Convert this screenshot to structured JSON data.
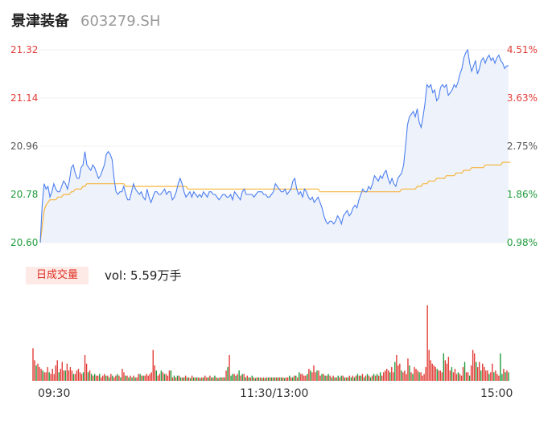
{
  "header": {
    "name": "景津装备",
    "code": "603279.SH"
  },
  "volume_panel": {
    "tab_label": "日成交量",
    "vol_prefix": "vol: ",
    "vol_value": "5.59万手"
  },
  "colors": {
    "price": "#4c7ff0",
    "avg": "#f5b53c",
    "up": "#e23c36",
    "down": "#1f9b3c",
    "area": "#eef2fb"
  },
  "chart_data": [
    {
      "type": "line",
      "y_left_ticks": [
        "21.32",
        "21.14",
        "20.96",
        "20.78",
        "20.60"
      ],
      "y_right_ticks": [
        "4.51%",
        "3.63%",
        "2.75%",
        "1.86%",
        "0.98%"
      ],
      "x_ticks": [
        "09:30",
        "11:30/13:00",
        "15:00"
      ],
      "ylim": [
        20.6,
        21.32
      ],
      "series": [
        {
          "values": [
            20.6,
            20.74,
            20.82,
            20.8,
            20.81,
            20.77,
            20.79,
            20.82,
            20.8,
            20.79,
            20.79,
            20.81,
            20.83,
            20.82,
            20.8,
            20.83,
            20.88,
            20.89,
            20.86,
            20.84,
            20.84,
            20.88,
            20.89,
            20.94,
            20.89,
            20.88,
            20.87,
            20.89,
            20.88,
            20.86,
            20.84,
            20.85,
            20.87,
            20.89,
            20.93,
            20.94,
            20.93,
            20.91,
            20.84,
            20.79,
            20.78,
            20.79,
            20.79,
            20.81,
            20.78,
            20.76,
            20.76,
            20.79,
            20.82,
            20.8,
            20.79,
            20.78,
            20.79,
            20.77,
            20.76,
            20.8,
            20.77,
            20.75,
            20.77,
            20.79,
            20.79,
            20.78,
            20.78,
            20.79,
            20.8,
            20.78,
            20.79,
            20.79,
            20.76,
            20.77,
            20.79,
            20.82,
            20.84,
            20.82,
            20.79,
            20.77,
            20.78,
            20.79,
            20.77,
            20.79,
            20.78,
            20.77,
            20.78,
            20.77,
            20.79,
            20.78,
            20.77,
            20.79,
            20.79,
            20.78,
            20.78,
            20.77,
            20.76,
            20.77,
            20.78,
            20.78,
            20.77,
            20.77,
            20.78,
            20.76,
            20.79,
            20.78,
            20.77,
            20.76,
            20.79,
            20.8,
            20.78,
            20.78,
            20.78,
            20.78,
            20.77,
            20.78,
            20.79,
            20.79,
            20.79,
            20.78,
            20.78,
            20.77,
            20.77,
            20.78,
            20.79,
            20.82,
            20.81,
            20.8,
            20.79,
            20.79,
            20.8,
            20.78,
            20.79,
            20.8,
            20.83,
            20.84,
            20.8,
            20.78,
            20.79,
            20.77,
            20.8,
            20.79,
            20.77,
            20.76,
            20.77,
            20.75,
            20.76,
            20.77,
            20.75,
            20.73,
            20.7,
            20.68,
            20.67,
            20.68,
            20.68,
            20.67,
            20.68,
            20.7,
            20.69,
            20.67,
            20.7,
            20.71,
            20.72,
            20.7,
            20.71,
            20.73,
            20.74,
            20.73,
            20.76,
            20.78,
            20.8,
            20.79,
            20.79,
            20.81,
            20.8,
            20.82,
            20.85,
            20.84,
            20.83,
            20.85,
            20.84,
            20.86,
            20.87,
            20.84,
            20.82,
            20.84,
            20.82,
            20.81,
            20.84,
            20.85,
            20.86,
            20.89,
            20.96,
            21.04,
            21.07,
            21.08,
            21.09,
            21.07,
            21.1,
            21.05,
            21.03,
            21.07,
            21.12,
            21.19,
            21.18,
            21.19,
            21.16,
            21.17,
            21.13,
            21.14,
            21.18,
            21.19,
            21.18,
            21.19,
            21.15,
            21.16,
            21.17,
            21.19,
            21.18,
            21.2,
            21.23,
            21.25,
            21.29,
            21.31,
            21.32,
            21.27,
            21.24,
            21.26,
            21.28,
            21.23,
            21.25,
            21.28,
            21.29,
            21.27,
            21.29,
            21.3,
            21.28,
            21.29,
            21.27,
            21.29,
            21.3,
            21.28,
            21.27,
            21.25,
            21.26,
            21.26
          ]
        },
        {
          "values": [
            20.6,
            20.66,
            20.72,
            20.74,
            20.75,
            20.76,
            20.76,
            20.76,
            20.76,
            20.77,
            20.77,
            20.77,
            20.78,
            20.78,
            20.78,
            20.78,
            20.79,
            20.79,
            20.8,
            20.8,
            20.8,
            20.8,
            20.81,
            20.81,
            20.82,
            20.82,
            20.82,
            20.82,
            20.82,
            20.82,
            20.82,
            20.82,
            20.82,
            20.82,
            20.82,
            20.82,
            20.82,
            20.82,
            20.82,
            20.82,
            20.82,
            20.82,
            20.82,
            20.82,
            20.81,
            20.81,
            20.81,
            20.81,
            20.81,
            20.81,
            20.81,
            20.81,
            20.81,
            20.81,
            20.81,
            20.81,
            20.81,
            20.81,
            20.81,
            20.81,
            20.81,
            20.81,
            20.81,
            20.81,
            20.81,
            20.81,
            20.81,
            20.81,
            20.81,
            20.81,
            20.81,
            20.81,
            20.81,
            20.81,
            20.81,
            20.81,
            20.8,
            20.8,
            20.8,
            20.8,
            20.8,
            20.8,
            20.8,
            20.8,
            20.8,
            20.8,
            20.8,
            20.8,
            20.8,
            20.8,
            20.8,
            20.8,
            20.8,
            20.8,
            20.8,
            20.8,
            20.8,
            20.8,
            20.8,
            20.8,
            20.8,
            20.8,
            20.8,
            20.8,
            20.8,
            20.8,
            20.8,
            20.8,
            20.8,
            20.8,
            20.8,
            20.8,
            20.8,
            20.8,
            20.8,
            20.8,
            20.8,
            20.8,
            20.8,
            20.8,
            20.8,
            20.8,
            20.8,
            20.8,
            20.8,
            20.8,
            20.8,
            20.8,
            20.8,
            20.8,
            20.8,
            20.8,
            20.8,
            20.8,
            20.8,
            20.8,
            20.8,
            20.8,
            20.8,
            20.8,
            20.8,
            20.8,
            20.8,
            20.8,
            20.79,
            20.79,
            20.79,
            20.79,
            20.79,
            20.79,
            20.79,
            20.79,
            20.79,
            20.79,
            20.79,
            20.79,
            20.79,
            20.79,
            20.79,
            20.79,
            20.79,
            20.79,
            20.79,
            20.79,
            20.79,
            20.79,
            20.79,
            20.79,
            20.79,
            20.79,
            20.79,
            20.79,
            20.79,
            20.79,
            20.79,
            20.79,
            20.79,
            20.79,
            20.79,
            20.79,
            20.79,
            20.79,
            20.79,
            20.79,
            20.79,
            20.79,
            20.8,
            20.8,
            20.8,
            20.8,
            20.8,
            20.8,
            20.8,
            20.8,
            20.81,
            20.81,
            20.81,
            20.82,
            20.82,
            20.82,
            20.83,
            20.83,
            20.83,
            20.83,
            20.84,
            20.84,
            20.84,
            20.84,
            20.84,
            20.85,
            20.85,
            20.85,
            20.85,
            20.85,
            20.86,
            20.86,
            20.86,
            20.86,
            20.87,
            20.87,
            20.87,
            20.87,
            20.88,
            20.88,
            20.88,
            20.88,
            20.88,
            20.88,
            20.88,
            20.89,
            20.89,
            20.89,
            20.89,
            20.89,
            20.89,
            20.89,
            20.89,
            20.89,
            20.9,
            20.9,
            20.9,
            20.9,
            20.9
          ]
        }
      ]
    },
    {
      "type": "bar",
      "volumes": [
        9.5,
        6.0,
        4.5,
        5.0,
        4.0,
        3.5,
        3.0,
        2.5,
        2.5,
        4.0,
        2.5,
        2.0,
        3.5,
        2.0,
        4.5,
        6.0,
        2.5,
        3.5,
        5.5,
        3.0,
        3.0,
        5.0,
        3.0,
        4.0,
        3.0,
        2.0,
        2.0,
        3.0,
        3.5,
        2.5,
        2.0,
        2.5,
        7.5,
        5.0,
        2.5,
        3.0,
        2.0,
        1.5,
        2.0,
        1.5,
        1.5,
        2.0,
        1.0,
        1.5,
        2.0,
        1.5,
        1.5,
        1.0,
        2.0,
        1.5,
        1.0,
        1.5,
        2.0,
        1.5,
        1.0,
        3.5,
        2.5,
        1.5,
        1.5,
        1.0,
        1.5,
        1.0,
        1.5,
        1.0,
        1.0,
        2.0,
        2.0,
        1.5,
        1.5,
        1.5,
        2.0,
        1.5,
        2.0,
        2.5,
        9.0,
        4.5,
        3.0,
        1.5,
        2.0,
        3.0,
        2.5,
        2.0,
        2.0,
        1.5,
        3.0,
        3.0,
        1.0,
        1.5,
        1.0,
        1.5,
        1.5,
        1.0,
        1.0,
        1.0,
        1.5,
        1.0,
        1.0,
        0.8,
        1.5,
        1.0,
        1.0,
        1.0,
        1.0,
        0.8,
        1.0,
        1.0,
        1.5,
        1.0,
        1.0,
        1.5,
        1.0,
        1.0,
        1.5,
        1.0,
        0.8,
        1.0,
        1.0,
        1.0,
        1.0,
        3.0,
        4.0,
        7.5,
        1.5,
        2.0,
        2.0,
        1.5,
        2.0,
        3.0,
        1.5,
        2.0,
        2.0,
        1.0,
        1.5,
        1.0,
        1.0,
        1.5,
        1.0,
        0.8,
        1.0,
        1.0,
        1.0,
        0.8,
        1.0,
        0.8,
        1.0,
        1.0,
        1.0,
        1.0,
        1.0,
        1.0,
        1.0,
        1.0,
        1.0,
        1.0,
        1.0,
        0.8,
        1.0,
        1.0,
        1.5,
        1.0,
        1.0,
        1.5,
        1.5,
        1.0,
        2.5,
        2.0,
        2.0,
        1.5,
        1.5,
        2.0,
        3.5,
        3.0,
        2.5,
        4.5,
        2.5,
        3.0,
        3.0,
        1.5,
        2.0,
        2.0,
        1.5,
        1.5,
        2.0,
        1.5,
        1.0,
        1.5,
        1.0,
        1.0,
        1.5,
        1.0,
        1.5,
        1.5,
        1.0,
        1.0,
        1.0,
        1.5,
        1.0,
        1.5,
        1.0,
        1.5,
        2.0,
        1.5,
        1.5,
        2.0,
        1.0,
        1.5,
        2.0,
        1.5,
        1.0,
        1.5,
        2.0,
        1.5,
        2.0,
        1.5,
        2.5,
        1.5,
        2.5,
        3.0,
        3.5,
        3.0,
        2.5,
        4.0,
        2.5,
        5.5,
        7.5,
        4.5,
        5.0,
        3.0,
        2.5,
        3.0,
        2.0,
        6.5,
        4.5,
        2.5,
        2.0,
        4.0,
        3.5,
        3.0,
        2.5,
        2.5,
        1.5,
        2.0,
        4.0,
        22.0,
        9.0,
        6.0,
        5.0,
        4.5,
        4.0,
        3.5,
        3.0,
        3.0,
        2.5,
        8.0,
        6.0,
        5.0,
        7.0,
        3.0,
        4.0,
        2.5,
        3.5,
        2.0,
        2.5,
        2.0,
        1.5,
        4.0,
        5.5,
        2.5,
        2.5,
        1.5,
        4.5,
        9.0,
        8.0,
        5.5,
        4.0,
        5.5,
        3.0,
        5.0,
        4.0,
        3.0,
        3.0,
        2.0,
        2.5,
        5.0,
        2.5,
        3.0,
        2.0,
        1.5,
        8.0,
        2.0,
        3.5,
        2.5,
        3.0,
        2.5
      ],
      "directions": [
        "u",
        "u",
        "d",
        "u",
        "u",
        "u",
        "d",
        "u",
        "u",
        "u",
        "d",
        "u",
        "u",
        "u",
        "u",
        "u",
        "d",
        "u",
        "u",
        "u",
        "d",
        "u",
        "u",
        "u",
        "u",
        "d",
        "u",
        "u",
        "u",
        "u",
        "u",
        "d",
        "u",
        "u",
        "d",
        "u",
        "d",
        "u",
        "d",
        "u",
        "u",
        "d",
        "u",
        "u",
        "u",
        "d",
        "u",
        "d",
        "u",
        "d",
        "u",
        "u",
        "d",
        "u",
        "d",
        "u",
        "u",
        "d",
        "u",
        "d",
        "u",
        "d",
        "u",
        "d",
        "u",
        "u",
        "d",
        "u",
        "d",
        "u",
        "u",
        "u",
        "u",
        "u",
        "u",
        "u",
        "d",
        "u",
        "u",
        "d",
        "u",
        "d",
        "u",
        "u",
        "u",
        "d",
        "u",
        "d",
        "u",
        "d",
        "u",
        "d",
        "u",
        "d",
        "u",
        "d",
        "u",
        "d",
        "u",
        "d",
        "u",
        "d",
        "u",
        "d",
        "u",
        "d",
        "u",
        "u",
        "d",
        "u",
        "d",
        "u",
        "d",
        "u",
        "d",
        "u",
        "d",
        "u",
        "d",
        "u",
        "d",
        "u",
        "d",
        "d",
        "u",
        "d",
        "u",
        "d",
        "u",
        "d",
        "u",
        "d",
        "u",
        "d",
        "u",
        "d",
        "u",
        "d",
        "u",
        "d",
        "u",
        "d",
        "u",
        "d",
        "u",
        "d",
        "u",
        "d",
        "u",
        "d",
        "u",
        "d",
        "u",
        "d",
        "u",
        "d",
        "u",
        "u",
        "d",
        "u",
        "d",
        "u",
        "d",
        "u",
        "d",
        "u",
        "u",
        "u",
        "u",
        "d",
        "u",
        "d",
        "u",
        "u",
        "u",
        "d",
        "u",
        "u",
        "d",
        "u",
        "d",
        "u",
        "d",
        "u",
        "d",
        "u",
        "d",
        "u",
        "d",
        "u",
        "d",
        "u",
        "d",
        "u",
        "d",
        "u",
        "d",
        "u",
        "d",
        "u",
        "d",
        "u",
        "d",
        "u",
        "d",
        "u",
        "d",
        "u",
        "d",
        "u",
        "d",
        "u",
        "d",
        "u",
        "d",
        "u",
        "u",
        "u",
        "u",
        "u",
        "d",
        "u",
        "u",
        "d",
        "u",
        "u",
        "u",
        "d",
        "u",
        "u",
        "u",
        "u",
        "d",
        "u",
        "d",
        "u",
        "u",
        "u",
        "d",
        "u",
        "u",
        "u",
        "u",
        "u",
        "u",
        "u",
        "u",
        "u",
        "u",
        "d",
        "u",
        "u",
        "u",
        "d",
        "u",
        "u",
        "u",
        "u",
        "d",
        "u",
        "u",
        "u",
        "d",
        "u",
        "u",
        "u",
        "d",
        "u",
        "u",
        "d",
        "u",
        "u",
        "u",
        "d",
        "u",
        "u",
        "d",
        "u",
        "u",
        "u",
        "u",
        "d",
        "u",
        "u",
        "d",
        "u",
        "u",
        "u",
        "d",
        "d",
        "u",
        "d",
        "u",
        "d",
        "d",
        "u",
        "d",
        "u"
      ]
    }
  ]
}
